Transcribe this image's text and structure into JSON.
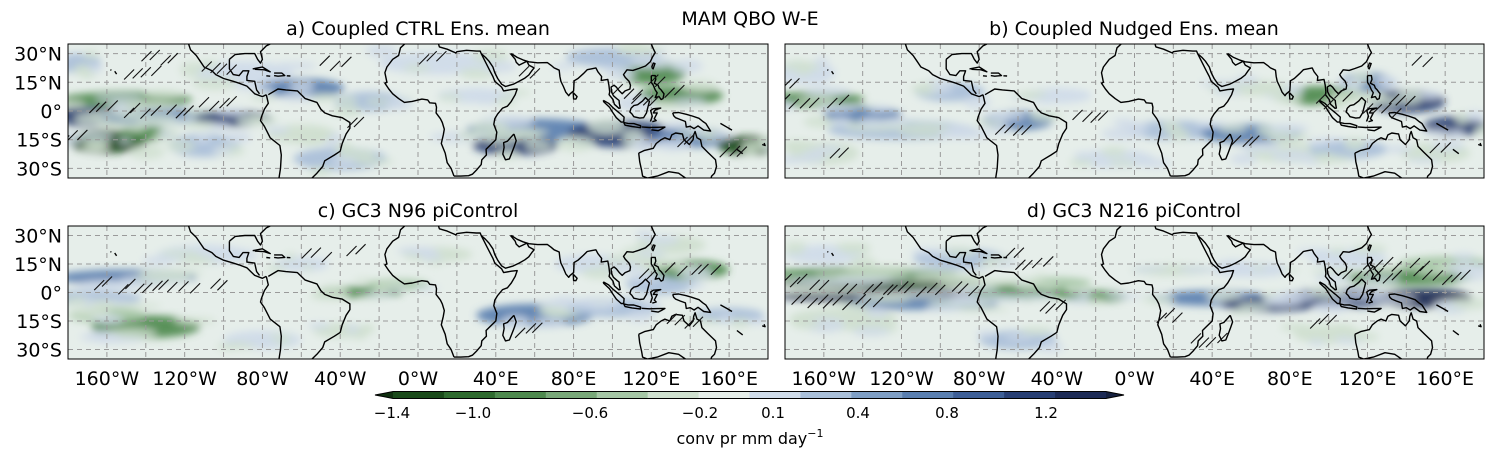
{
  "figure": {
    "title": "MAM QBO W-E",
    "panels": [
      {
        "id": "a",
        "title": "a) Coupled CTRL Ens. mean"
      },
      {
        "id": "b",
        "title": "b) Coupled Nudged Ens. mean"
      },
      {
        "id": "c",
        "title": "c) GC3 N96 piControl"
      },
      {
        "id": "d",
        "title": "d) GC3 N216 piControl"
      }
    ],
    "lat_ticks": [
      "30°N",
      "15°N",
      "0°",
      "15°S",
      "30°S"
    ],
    "lon_ticks": [
      "160°W",
      "120°W",
      "80°W",
      "40°W",
      "0°W",
      "40°E",
      "80°E",
      "120°E",
      "160°E"
    ],
    "colorbar": {
      "label": "conv pr mm day",
      "label_superscript": "−1",
      "tick_labels": [
        "−1.4",
        "−1.0",
        "−0.6",
        "−0.2",
        "0.1",
        "0.4",
        "0.8",
        "1.2"
      ],
      "colors": [
        "#1a4a1a",
        "#2f6b2f",
        "#4f8a4f",
        "#79a879",
        "#a6c7a6",
        "#cfe0cf",
        "#e6eeea",
        "#cfdbe9",
        "#a9bfd9",
        "#7f9fc5",
        "#5a7fb0",
        "#3e5f97",
        "#283f74",
        "#1c2a55"
      ]
    }
  },
  "chart_data": {
    "type": "heatmap",
    "title": "MAM QBO W-E",
    "variable": "conv pr mm day−1",
    "lat_range": [
      -35,
      35
    ],
    "lon_range": [
      -180,
      180
    ],
    "colorbar_range": [
      -1.4,
      1.4
    ],
    "panels": [
      "a) Coupled CTRL Ens. mean",
      "b) Coupled Nudged Ens. mean",
      "c) GC3 N96 piControl",
      "d) GC3 N216 piControl"
    ]
  }
}
